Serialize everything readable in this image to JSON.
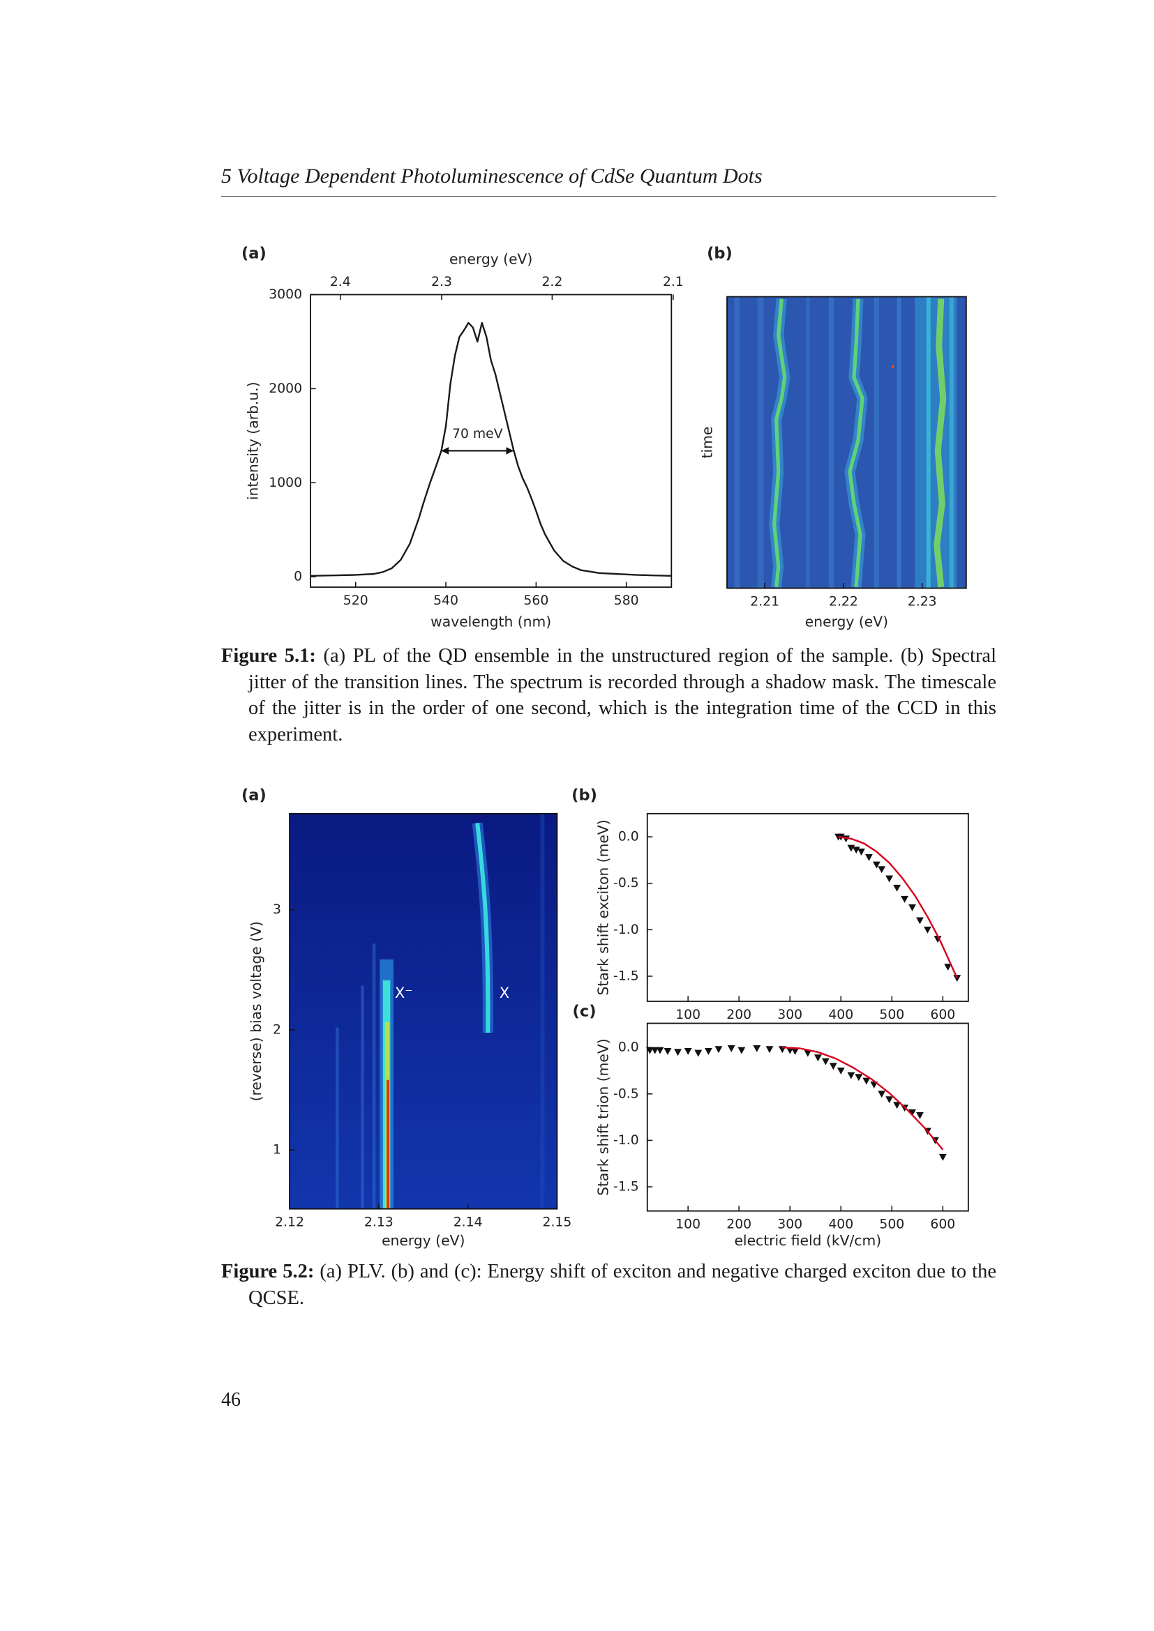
{
  "header": {
    "title": "5 Voltage Dependent Photoluminescence of CdSe Quantum Dots"
  },
  "chart_data": [
    {
      "type": "line",
      "panel_label": "(a)",
      "xlabel": "wavelength (nm)",
      "ylabel": "intensity (arb.u.)",
      "x2label": "energy (eV)",
      "x": [
        510,
        515,
        520,
        524,
        526,
        528,
        530,
        532,
        534,
        535,
        536.5,
        538,
        539,
        540,
        541,
        542,
        543,
        544,
        545,
        546,
        547,
        548,
        549,
        550,
        551,
        552,
        553,
        554,
        555,
        556,
        557,
        558,
        559,
        560,
        561,
        562,
        564,
        566,
        568,
        570,
        574,
        578,
        582,
        586,
        590
      ],
      "values": [
        10,
        15,
        20,
        30,
        50,
        90,
        180,
        350,
        620,
        780,
        1000,
        1200,
        1340,
        1600,
        2050,
        2350,
        2550,
        2620,
        2700,
        2650,
        2500,
        2700,
        2550,
        2300,
        2150,
        1950,
        1750,
        1550,
        1350,
        1180,
        1050,
        950,
        830,
        700,
        560,
        450,
        280,
        170,
        110,
        70,
        40,
        30,
        20,
        15,
        10
      ],
      "color": "#1a1a1a",
      "xlim": [
        510,
        590
      ],
      "xticks": [
        520,
        540,
        560,
        580
      ],
      "ylim": [
        -110,
        3000
      ],
      "yticks": [
        0,
        1000,
        2000,
        3000
      ],
      "x2ticks": [
        2.4,
        2.3,
        2.2,
        2.1
      ],
      "annotation": {
        "text": "70 meV",
        "x": [
          539,
          555
        ],
        "y": 1340
      }
    },
    {
      "type": "heatmap",
      "panel_label": "(b)",
      "xlabel": "energy (eV)",
      "ylabel": "time",
      "xlim": [
        2.2052,
        2.2356
      ],
      "xticks": [
        2.21,
        2.22,
        2.23
      ]
    },
    {
      "type": "heatmap",
      "panel_label": "(a)",
      "xlabel": "energy (eV)",
      "ylabel": "(reverse) bias voltage (V)",
      "xlim": [
        2.12,
        2.15
      ],
      "ylim": [
        0.51,
        3.8
      ],
      "xticks": [
        2.12,
        2.13,
        2.14,
        2.15
      ],
      "yticks": [
        1,
        2,
        3
      ],
      "annotations": [
        {
          "text": "X⁻",
          "x": 2.1328,
          "y": 2.3
        },
        {
          "text": "X",
          "x": 2.1441,
          "y": 2.3
        }
      ]
    },
    {
      "type": "scatter",
      "panel_label": "(b)",
      "ylabel": "Stark shift exciton (meV)",
      "xlim": [
        20,
        650
      ],
      "ylim": [
        -1.77,
        0.25
      ],
      "xticks": [
        100,
        200,
        300,
        400,
        500,
        600
      ],
      "yticks": [
        {
          "value": 0,
          "label": "0.0"
        },
        -0.5,
        {
          "value": -1,
          "label": "-1.0"
        },
        -1.5
      ],
      "series": [
        {
          "type": "scatter",
          "color": "#111111",
          "x": [
            395,
            400,
            410,
            420,
            430,
            440,
            455,
            470,
            480,
            495,
            510,
            525,
            540,
            555,
            570,
            590,
            610,
            628
          ],
          "values": [
            0,
            0,
            -0.02,
            -0.12,
            -0.14,
            -0.16,
            -0.22,
            -0.3,
            -0.35,
            -0.45,
            -0.55,
            -0.67,
            -0.76,
            -0.9,
            -1.0,
            -1.1,
            -1.4,
            -1.52
          ]
        },
        {
          "type": "line",
          "color": "#d6001c",
          "x": [
            395,
            420,
            445,
            470,
            495,
            520,
            545,
            570,
            595,
            628
          ],
          "values": [
            0,
            -0.02,
            -0.07,
            -0.16,
            -0.28,
            -0.44,
            -0.63,
            -0.86,
            -1.12,
            -1.52
          ]
        }
      ]
    },
    {
      "type": "scatter",
      "panel_label": "(c)",
      "xlabel": "electric field (kV/cm)",
      "ylabel": "Stark shift trion (meV)",
      "xlim": [
        20,
        650
      ],
      "ylim": [
        -1.76,
        0.26
      ],
      "xticks": [
        100,
        200,
        300,
        400,
        500,
        600
      ],
      "yticks": [
        {
          "value": 0,
          "label": "0.0"
        },
        -0.5,
        {
          "value": -1,
          "label": "-1.0"
        },
        -1.5
      ],
      "series": [
        {
          "type": "scatter",
          "color": "#111111",
          "x": [
            25,
            35,
            45,
            60,
            80,
            100,
            120,
            140,
            160,
            185,
            205,
            235,
            260,
            285,
            300,
            310,
            335,
            355,
            370,
            385,
            400,
            420,
            435,
            450,
            465,
            480,
            495,
            510,
            525,
            540,
            555,
            570,
            585,
            600
          ],
          "values": [
            -0.03,
            -0.03,
            -0.03,
            -0.04,
            -0.05,
            -0.04,
            -0.06,
            -0.04,
            -0.02,
            -0.01,
            -0.03,
            -0.01,
            -0.02,
            -0.02,
            -0.03,
            -0.04,
            -0.06,
            -0.11,
            -0.15,
            -0.2,
            -0.25,
            -0.3,
            -0.32,
            -0.36,
            -0.4,
            -0.5,
            -0.56,
            -0.62,
            -0.65,
            -0.7,
            -0.73,
            -0.9,
            -1.0,
            -1.18
          ]
        },
        {
          "type": "line",
          "color": "#d6001c",
          "x": [
            285,
            320,
            355,
            390,
            425,
            460,
            495,
            530,
            565,
            600
          ],
          "values": [
            0,
            -0.01,
            -0.05,
            -0.12,
            -0.22,
            -0.34,
            -0.49,
            -0.67,
            -0.87,
            -1.1
          ]
        }
      ]
    }
  ],
  "captions": [
    {
      "label": "Figure 5.1:",
      "text": "(a) PL of the QD ensemble in the unstructured region of the sample. (b) Spectral jitter of the transition lines. The spectrum is recorded through a shadow mask. The timescale of the jitter is in the order of one second, which is the integration time of the CCD in this experiment."
    },
    {
      "label": "Figure 5.2:",
      "text": "(a) PLV. (b) and (c): Energy shift of exciton and negative charged exciton due to the QCSE."
    }
  ],
  "page_number": "46"
}
